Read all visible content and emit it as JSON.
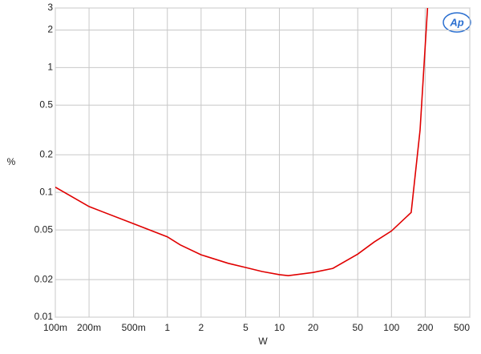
{
  "chart_data": {
    "type": "line",
    "logo": "Ap",
    "xlabel": "W",
    "ylabel": "%",
    "x": [
      0.1,
      0.2,
      0.5,
      1,
      1.3,
      2,
      3.5,
      5,
      7,
      10,
      12,
      20,
      30,
      50,
      70,
      100,
      150,
      180,
      210
    ],
    "series": [
      {
        "color": "#e00000",
        "values": [
          0.11,
          0.077,
          0.056,
          0.044,
          0.038,
          0.0316,
          0.027,
          0.025,
          0.0232,
          0.0219,
          0.0215,
          0.0228,
          0.0246,
          0.032,
          0.04,
          0.049,
          0.069,
          0.316,
          3
        ]
      }
    ],
    "xscale": "log",
    "yscale": "log",
    "xlim": [
      0.1,
      500
    ],
    "ylim": [
      0.01,
      3
    ],
    "xticks": [
      {
        "value": 0.1,
        "label": "100m"
      },
      {
        "value": 0.2,
        "label": "200m"
      },
      {
        "value": 0.5,
        "label": "500m"
      },
      1,
      2,
      5,
      10,
      20,
      50,
      100,
      200,
      500
    ],
    "yticks": [
      0.01,
      0.02,
      0.05,
      0.1,
      0.2,
      0.5,
      1,
      2,
      3
    ],
    "grid": true
  }
}
